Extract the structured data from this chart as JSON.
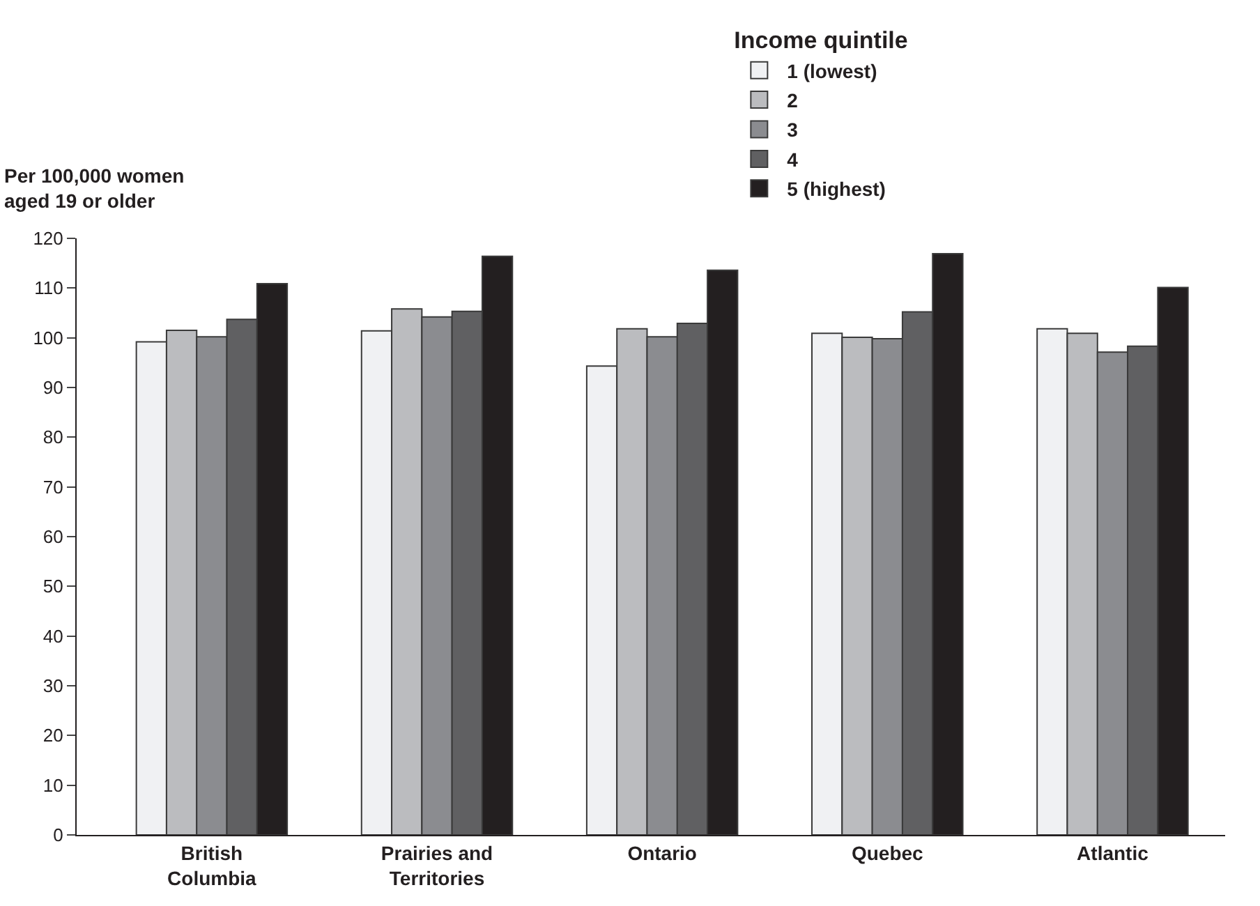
{
  "chart_data": {
    "type": "bar",
    "ylabel": "Per 100,000 women aged 19 or older",
    "legend_title": "Income quintile",
    "categories": [
      "British Columbia",
      "Prairies and Territories",
      "Ontario",
      "Quebec",
      "Atlantic"
    ],
    "series": [
      {
        "name": "1 (lowest)",
        "color": "#f0f1f3",
        "values": [
          99.2,
          101.4,
          94.3,
          100.9,
          101.8
        ]
      },
      {
        "name": "2",
        "color": "#bbbcbf",
        "values": [
          101.5,
          105.8,
          101.8,
          100.1,
          100.9
        ]
      },
      {
        "name": "3",
        "color": "#8b8c90",
        "values": [
          100.2,
          104.2,
          100.2,
          99.8,
          97.1
        ]
      },
      {
        "name": "4",
        "color": "#606062",
        "values": [
          103.7,
          105.3,
          102.9,
          105.2,
          98.3
        ]
      },
      {
        "name": "5 (highest)",
        "color": "#231f20",
        "values": [
          110.9,
          116.4,
          113.6,
          116.9,
          110.1
        ]
      }
    ],
    "ylim": [
      0,
      120
    ],
    "yticks": [
      0,
      10,
      20,
      30,
      40,
      50,
      60,
      70,
      80,
      90,
      100,
      110,
      120
    ],
    "legend": "top right"
  }
}
